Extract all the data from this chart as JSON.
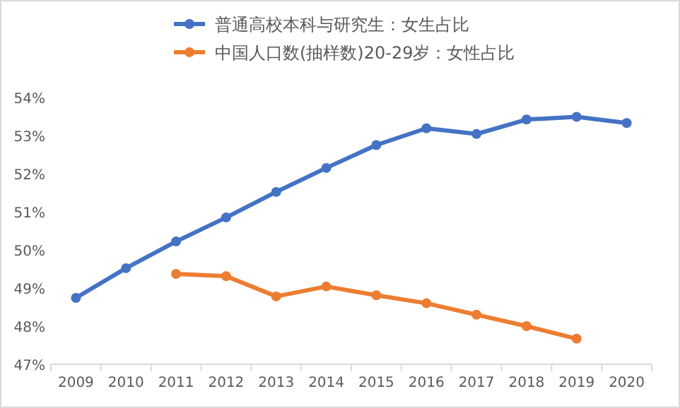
{
  "chart_data": {
    "type": "line",
    "categories": [
      "2009",
      "2010",
      "2011",
      "2012",
      "2013",
      "2014",
      "2015",
      "2016",
      "2017",
      "2018",
      "2019",
      "2020"
    ],
    "series": [
      {
        "name": "普通高校本科与研究生：女生占比",
        "color": "#4472c4",
        "values": [
          48.74,
          49.52,
          50.22,
          50.85,
          51.52,
          52.15,
          52.75,
          53.19,
          53.04,
          53.42,
          53.49,
          53.33
        ]
      },
      {
        "name": "中国人口数(抽样数)20-29岁：女性占比",
        "color": "#ed7d31",
        "values": [
          null,
          null,
          49.37,
          49.31,
          48.78,
          49.04,
          48.81,
          48.6,
          48.3,
          48.0,
          47.67,
          null
        ]
      }
    ],
    "ylim": [
      47,
      54
    ],
    "yticks": [
      {
        "value": 47,
        "label": "47%"
      },
      {
        "value": 48,
        "label": "48%"
      },
      {
        "value": 49,
        "label": "49%"
      },
      {
        "value": 50,
        "label": "50%"
      },
      {
        "value": 51,
        "label": "51%"
      },
      {
        "value": 52,
        "label": "52%"
      },
      {
        "value": 53,
        "label": "53%"
      },
      {
        "value": 54,
        "label": "54%"
      }
    ],
    "grid": false,
    "legend": "top",
    "marker": "circle",
    "line_style": "solid"
  }
}
